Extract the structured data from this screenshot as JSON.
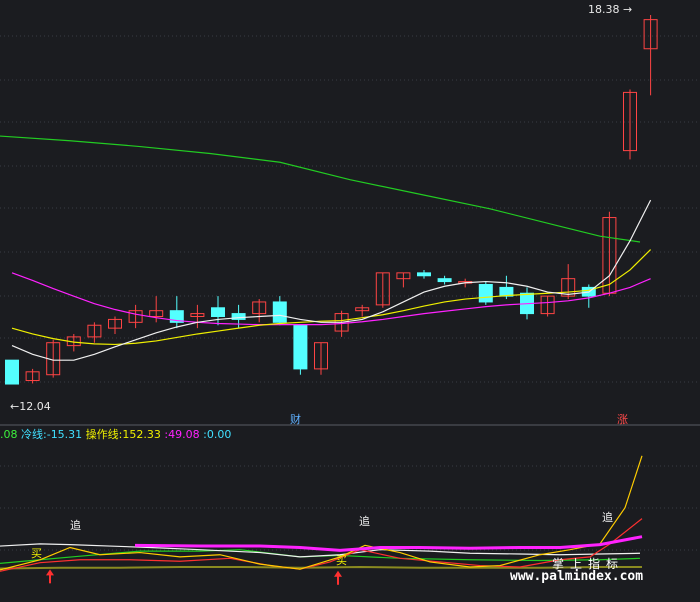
{
  "colors": {
    "background": "#1b1c20",
    "grid": "#3a3c44",
    "up_candle": "#ff4444",
    "down_candle": "#54ffff",
    "ma_white": "#f0f0f0",
    "ma_yellow": "#f0f000",
    "ma_magenta": "#ff22ff",
    "ma_green": "#22cc22"
  },
  "price_axis": {
    "high_label": "18.38",
    "low_label": "12.04"
  },
  "events": {
    "cai": "财",
    "zhang": "涨"
  },
  "indicator_bar": {
    "lead_value": ".08",
    "cold_label": "冷线:",
    "cold_value": "-15.31",
    "op_label": "操作线:",
    "op_value": "152.33",
    "magenta_label": ":",
    "magenta_value": "49.08",
    "last_label": ":",
    "last_value": "0.00"
  },
  "signals": {
    "buy": "买",
    "chase": "追"
  },
  "watermark": {
    "url": "www.palmindex.com",
    "cn": "掌上指标"
  },
  "chart_data": {
    "type": "candlestick",
    "ylim": [
      11.8,
      18.5
    ],
    "candles": [
      {
        "o": 12.45,
        "h": 12.45,
        "l": 12.04,
        "c": 12.04
      },
      {
        "o": 12.1,
        "h": 12.3,
        "l": 12.05,
        "c": 12.25
      },
      {
        "o": 12.2,
        "h": 12.8,
        "l": 12.15,
        "c": 12.75
      },
      {
        "o": 12.7,
        "h": 12.9,
        "l": 12.6,
        "c": 12.85
      },
      {
        "o": 12.85,
        "h": 13.1,
        "l": 12.75,
        "c": 13.05
      },
      {
        "o": 13.0,
        "h": 13.2,
        "l": 12.9,
        "c": 13.15
      },
      {
        "o": 13.1,
        "h": 13.4,
        "l": 13.0,
        "c": 13.3
      },
      {
        "o": 13.2,
        "h": 13.55,
        "l": 13.1,
        "c": 13.3
      },
      {
        "o": 13.3,
        "h": 13.55,
        "l": 13.0,
        "c": 13.1
      },
      {
        "o": 13.2,
        "h": 13.4,
        "l": 13.0,
        "c": 13.25
      },
      {
        "o": 13.35,
        "h": 13.55,
        "l": 13.05,
        "c": 13.2
      },
      {
        "o": 13.25,
        "h": 13.4,
        "l": 13.0,
        "c": 13.15
      },
      {
        "o": 13.25,
        "h": 13.5,
        "l": 13.1,
        "c": 13.45
      },
      {
        "o": 13.45,
        "h": 13.55,
        "l": 13.05,
        "c": 13.1
      },
      {
        "o": 13.05,
        "h": 13.05,
        "l": 12.2,
        "c": 12.3
      },
      {
        "o": 12.3,
        "h": 12.75,
        "l": 12.2,
        "c": 12.75
      },
      {
        "o": 12.95,
        "h": 13.3,
        "l": 12.85,
        "c": 13.25
      },
      {
        "o": 13.3,
        "h": 13.4,
        "l": 13.2,
        "c": 13.35
      },
      {
        "o": 13.4,
        "h": 13.95,
        "l": 13.35,
        "c": 13.95
      },
      {
        "o": 13.85,
        "h": 13.95,
        "l": 13.7,
        "c": 13.95
      },
      {
        "o": 13.95,
        "h": 14.0,
        "l": 13.85,
        "c": 13.9
      },
      {
        "o": 13.85,
        "h": 13.9,
        "l": 13.75,
        "c": 13.8
      },
      {
        "o": 13.78,
        "h": 13.85,
        "l": 13.7,
        "c": 13.8
      },
      {
        "o": 13.75,
        "h": 13.8,
        "l": 13.4,
        "c": 13.45
      },
      {
        "o": 13.7,
        "h": 13.9,
        "l": 13.5,
        "c": 13.55
      },
      {
        "o": 13.6,
        "h": 13.7,
        "l": 13.15,
        "c": 13.25
      },
      {
        "o": 13.25,
        "h": 13.55,
        "l": 13.2,
        "c": 13.55
      },
      {
        "o": 13.55,
        "h": 14.1,
        "l": 13.5,
        "c": 13.85
      },
      {
        "o": 13.7,
        "h": 13.75,
        "l": 13.35,
        "c": 13.55
      },
      {
        "o": 13.6,
        "h": 15.0,
        "l": 13.55,
        "c": 14.9
      },
      {
        "o": 16.05,
        "h": 17.1,
        "l": 15.9,
        "c": 17.05
      },
      {
        "o": 17.8,
        "h": 18.38,
        "l": 17.0,
        "c": 18.3
      }
    ],
    "ma_white": [
      12.7,
      12.55,
      12.45,
      12.45,
      12.55,
      12.68,
      12.8,
      12.92,
      13.02,
      13.1,
      13.15,
      13.18,
      13.2,
      13.22,
      13.15,
      13.1,
      13.1,
      13.15,
      13.28,
      13.45,
      13.62,
      13.72,
      13.78,
      13.8,
      13.78,
      13.72,
      13.62,
      13.58,
      13.62,
      13.9,
      14.5,
      15.2
    ],
    "ma_yellow": [
      13.0,
      12.9,
      12.82,
      12.76,
      12.73,
      12.72,
      12.74,
      12.78,
      12.84,
      12.9,
      12.95,
      13.0,
      13.05,
      13.08,
      13.1,
      13.12,
      13.13,
      13.18,
      13.23,
      13.3,
      13.38,
      13.45,
      13.5,
      13.53,
      13.56,
      13.58,
      13.6,
      13.62,
      13.65,
      13.75,
      14.0,
      14.35
    ],
    "ma_magenta": [
      13.95,
      13.82,
      13.68,
      13.55,
      13.42,
      13.32,
      13.24,
      13.18,
      13.13,
      13.1,
      13.08,
      13.07,
      13.06,
      13.06,
      13.06,
      13.06,
      13.08,
      13.11,
      13.15,
      13.2,
      13.25,
      13.29,
      13.33,
      13.37,
      13.4,
      13.42,
      13.44,
      13.47,
      13.52,
      13.6,
      13.7,
      13.85
    ],
    "ma_green": [
      [
        0,
        16.3
      ],
      [
        70,
        16.22
      ],
      [
        140,
        16.12
      ],
      [
        210,
        16.0
      ],
      [
        280,
        15.85
      ],
      [
        350,
        15.55
      ],
      [
        420,
        15.3
      ],
      [
        490,
        15.05
      ],
      [
        560,
        14.75
      ],
      [
        600,
        14.58
      ],
      [
        640,
        14.48
      ]
    ],
    "indicator_ylim": [
      -20,
      160
    ],
    "ind_white": [
      [
        0,
        27
      ],
      [
        40,
        30
      ],
      [
        70,
        29
      ],
      [
        110,
        27
      ],
      [
        150,
        25
      ],
      [
        200,
        22
      ],
      [
        260,
        18
      ],
      [
        300,
        12
      ],
      [
        340,
        15
      ],
      [
        380,
        22
      ],
      [
        430,
        20
      ],
      [
        470,
        17
      ],
      [
        520,
        16
      ],
      [
        560,
        15
      ],
      [
        600,
        16
      ],
      [
        640,
        17
      ]
    ],
    "ind_magenta": [
      [
        135,
        28
      ],
      [
        200,
        27
      ],
      [
        260,
        27
      ],
      [
        300,
        25
      ],
      [
        340,
        21
      ],
      [
        380,
        25
      ],
      [
        420,
        25
      ],
      [
        470,
        24
      ],
      [
        520,
        25
      ],
      [
        560,
        25
      ],
      [
        600,
        29
      ],
      [
        642,
        40
      ]
    ],
    "ind_green": [
      [
        0,
        3
      ],
      [
        40,
        8
      ],
      [
        80,
        13
      ],
      [
        140,
        20
      ],
      [
        200,
        20
      ],
      [
        240,
        22
      ],
      [
        300,
        12
      ],
      [
        340,
        14
      ],
      [
        400,
        10
      ],
      [
        470,
        8
      ],
      [
        540,
        7
      ],
      [
        600,
        8
      ],
      [
        640,
        10
      ]
    ],
    "ind_yellow": [
      [
        0,
        -6
      ],
      [
        40,
        8
      ],
      [
        70,
        25
      ],
      [
        100,
        15
      ],
      [
        140,
        18
      ],
      [
        180,
        12
      ],
      [
        220,
        15
      ],
      [
        260,
        2
      ],
      [
        300,
        -5
      ],
      [
        340,
        12
      ],
      [
        365,
        28
      ],
      [
        400,
        18
      ],
      [
        430,
        5
      ],
      [
        470,
        -2
      ],
      [
        500,
        0
      ],
      [
        540,
        15
      ],
      [
        570,
        22
      ],
      [
        600,
        30
      ],
      [
        625,
        80
      ],
      [
        642,
        152
      ]
    ],
    "ind_red": [
      [
        0,
        -8
      ],
      [
        40,
        4
      ],
      [
        80,
        8
      ],
      [
        130,
        8
      ],
      [
        180,
        6
      ],
      [
        230,
        10
      ],
      [
        270,
        0
      ],
      [
        300,
        -5
      ],
      [
        330,
        5
      ],
      [
        360,
        22
      ],
      [
        400,
        10
      ],
      [
        440,
        5
      ],
      [
        480,
        0
      ],
      [
        520,
        -2
      ],
      [
        560,
        8
      ],
      [
        590,
        12
      ],
      [
        610,
        30
      ],
      [
        642,
        65
      ]
    ],
    "ind_olive": [
      [
        0,
        -4
      ],
      [
        60,
        -3
      ],
      [
        120,
        -3
      ],
      [
        180,
        -2
      ],
      [
        240,
        -2
      ],
      [
        300,
        -3
      ],
      [
        360,
        -2
      ],
      [
        420,
        -3
      ],
      [
        480,
        -3
      ],
      [
        540,
        -3
      ],
      [
        600,
        -2
      ],
      [
        642,
        -2
      ]
    ],
    "buy_signals": [
      {
        "x": 50,
        "v": -8
      },
      {
        "x": 338,
        "v": -10
      }
    ],
    "chase_signals": [
      {
        "x": 75,
        "v": 30
      },
      {
        "x": 365,
        "v": 30
      },
      {
        "x": 608,
        "v": 38
      }
    ]
  }
}
